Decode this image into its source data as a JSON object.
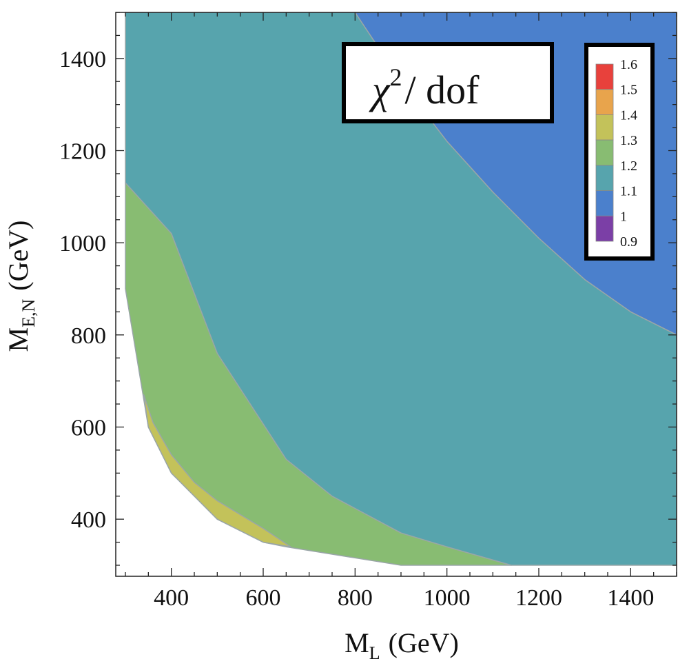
{
  "chart_data": {
    "type": "contour",
    "title": {
      "symbol": "χ",
      "superscript": "2",
      "suffix": "/ dof"
    },
    "xlabel": {
      "main": "M",
      "sub": "L",
      "unit": "(GeV)"
    },
    "ylabel": {
      "main": "M",
      "sub": "E,N",
      "unit": "(GeV)"
    },
    "xlim": [
      300,
      1500
    ],
    "ylim": [
      300,
      1500
    ],
    "x_ticks": [
      400,
      600,
      800,
      1000,
      1200,
      1400
    ],
    "y_ticks": [
      400,
      600,
      800,
      1000,
      1200,
      1400
    ],
    "x_tick_labels": [
      "400",
      "600",
      "800",
      "1000",
      "1200",
      "1400"
    ],
    "y_tick_labels": [
      "400",
      "600",
      "800",
      "1000",
      "1200",
      "1400"
    ],
    "grid": false,
    "legend_position": "top-right",
    "color_bar": {
      "levels": [
        "1.6",
        "1.5",
        "1.4",
        "1.3",
        "1.2",
        "1.1",
        "1",
        "0.9"
      ],
      "colors": [
        "#e8413c",
        "#e8a44c",
        "#c3c25a",
        "#88bc72",
        "#57a4ad",
        "#4b80cc",
        "#7b3fa6"
      ]
    },
    "regions": [
      {
        "name": "1.0-1.1",
        "color": "#4b80cc",
        "points": [
          [
            800,
            1500
          ],
          [
            1500,
            1500
          ],
          [
            1500,
            800
          ],
          [
            1400,
            850
          ],
          [
            1300,
            920
          ],
          [
            1200,
            1010
          ],
          [
            1100,
            1110
          ],
          [
            1000,
            1220
          ],
          [
            900,
            1350
          ]
        ]
      },
      {
        "name": "1.1-1.2",
        "color": "#57a4ad",
        "points": [
          [
            300,
            1500
          ],
          [
            800,
            1500
          ],
          [
            900,
            1350
          ],
          [
            1000,
            1220
          ],
          [
            1100,
            1110
          ],
          [
            1200,
            1010
          ],
          [
            1300,
            920
          ],
          [
            1400,
            850
          ],
          [
            1500,
            800
          ],
          [
            1500,
            300
          ],
          [
            1140,
            300
          ],
          [
            1000,
            340
          ],
          [
            900,
            370
          ],
          [
            750,
            450
          ],
          [
            650,
            530
          ],
          [
            500,
            760
          ],
          [
            400,
            1020
          ],
          [
            300,
            1130
          ]
        ]
      },
      {
        "name": "1.2-1.3",
        "color": "#88bc72",
        "points": [
          [
            300,
            1130
          ],
          [
            400,
            1020
          ],
          [
            500,
            760
          ],
          [
            650,
            530
          ],
          [
            750,
            450
          ],
          [
            900,
            370
          ],
          [
            1000,
            340
          ],
          [
            1140,
            300
          ],
          [
            900,
            300
          ],
          [
            650,
            340
          ],
          [
            600,
            350
          ],
          [
            500,
            400
          ],
          [
            400,
            500
          ],
          [
            350,
            600
          ],
          [
            300,
            900
          ]
        ]
      },
      {
        "name": "1.3-1.4",
        "color": "#c3c25a",
        "points": [
          [
            340,
            670
          ],
          [
            360,
            610
          ],
          [
            400,
            540
          ],
          [
            450,
            480
          ],
          [
            500,
            440
          ],
          [
            600,
            380
          ],
          [
            660,
            340
          ],
          [
            600,
            350
          ],
          [
            500,
            400
          ],
          [
            400,
            500
          ],
          [
            350,
            600
          ]
        ]
      }
    ]
  }
}
